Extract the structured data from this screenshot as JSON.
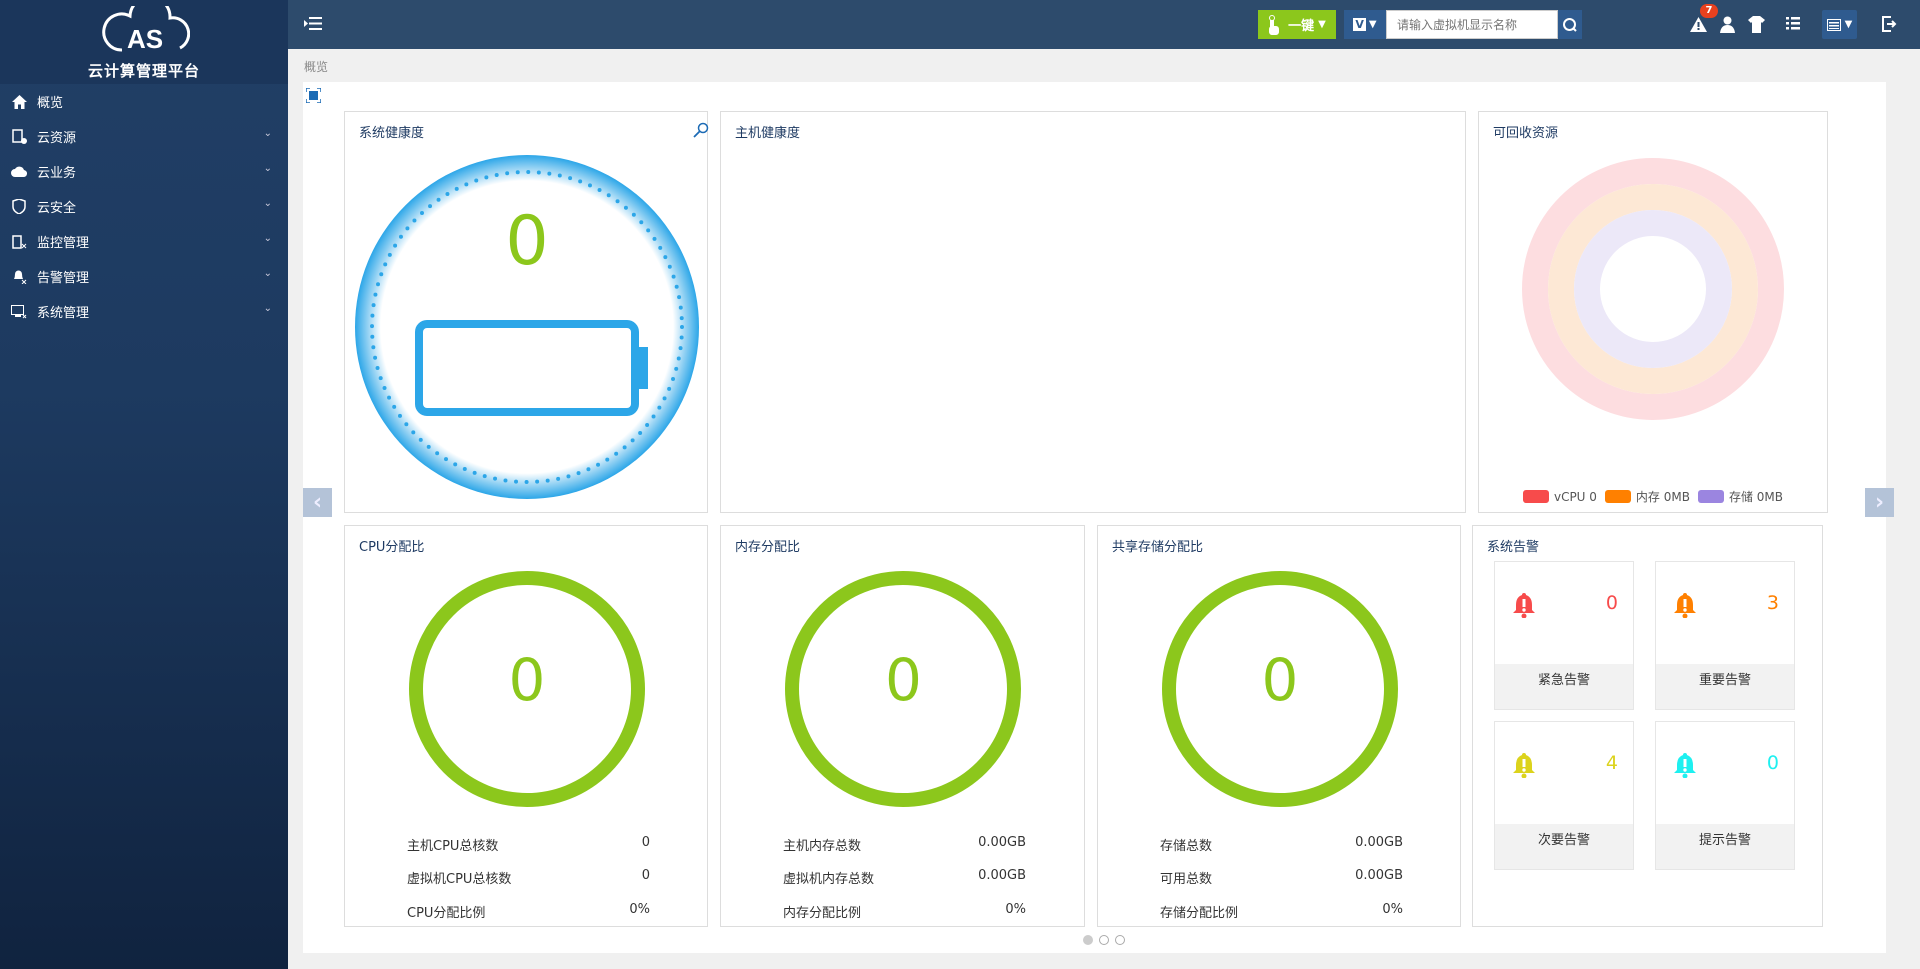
{
  "app": {
    "logo_text": "CAS",
    "subtitle": "云计算管理平台"
  },
  "sidebar": {
    "items": [
      {
        "label": "概览",
        "icon": "home-icon"
      },
      {
        "label": "云资源",
        "icon": "cloud-resource-icon"
      },
      {
        "label": "云业务",
        "icon": "cloud-service-icon"
      },
      {
        "label": "云安全",
        "icon": "shield-icon"
      },
      {
        "label": "监控管理",
        "icon": "monitor-icon"
      },
      {
        "label": "告警管理",
        "icon": "alarm-icon"
      },
      {
        "label": "系统管理",
        "icon": "computer-icon"
      }
    ]
  },
  "topbar": {
    "one_click": "一键",
    "search_placeholder": "请输入虚拟机显示名称",
    "alert_count": "7",
    "vm_type": "V"
  },
  "breadcrumb": "概览",
  "health": {
    "title": "系统健康度",
    "score": "0"
  },
  "host_health": {
    "title": "主机健康度"
  },
  "recyclable": {
    "title": "可回收资源",
    "legend": [
      {
        "label": "vCPU 0",
        "color": "#f74b4b"
      },
      {
        "label": "内存 0MB",
        "color": "#ff8000"
      },
      {
        "label": "存储 0MB",
        "color": "#9b85e0"
      }
    ],
    "ring_colors": [
      "#fddde0",
      "#fde8d5",
      "#ece8f8"
    ]
  },
  "cpu": {
    "title": "CPU分配比",
    "value": "0",
    "rows": [
      {
        "label": "主机CPU总核数",
        "value": "0"
      },
      {
        "label": "虚拟机CPU总核数",
        "value": "0"
      },
      {
        "label": "CPU分配比例",
        "value": "0%"
      }
    ]
  },
  "memory": {
    "title": "内存分配比",
    "value": "0",
    "rows": [
      {
        "label": "主机内存总数",
        "value": "0.00GB"
      },
      {
        "label": "虚拟机内存总数",
        "value": "0.00GB"
      },
      {
        "label": "内存分配比例",
        "value": "0%"
      }
    ]
  },
  "storage": {
    "title": "共享存储分配比",
    "value": "0",
    "rows": [
      {
        "label": "存储总数",
        "value": "0.00GB"
      },
      {
        "label": "可用总数",
        "value": "0.00GB"
      },
      {
        "label": "存储分配比例",
        "value": "0%"
      }
    ]
  },
  "alarms": {
    "title": "系统告警",
    "items": [
      {
        "label": "紧急告警",
        "count": "0",
        "color": "#f74b4b"
      },
      {
        "label": "重要告警",
        "count": "3",
        "color": "#ff8000"
      },
      {
        "label": "次要告警",
        "count": "4",
        "color": "#dcd31c"
      },
      {
        "label": "提示告警",
        "count": "0",
        "color": "#1ef0f0"
      }
    ]
  },
  "colors": {
    "accent_green": "#8cc71c",
    "health_blue": "#2ca6e8",
    "topbar": "#2d4b6c"
  },
  "carousel": {
    "pages": 3,
    "current": 1
  }
}
